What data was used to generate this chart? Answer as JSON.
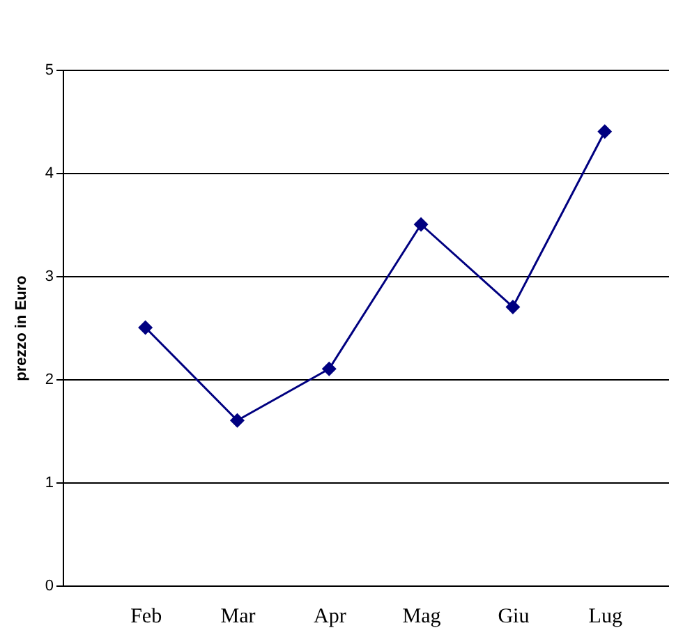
{
  "chart_data": {
    "type": "line",
    "ylabel": "prezzo in Euro",
    "categories": [
      "Feb",
      "Mar",
      "Apr",
      "Mag",
      "Giu",
      "Lug"
    ],
    "series": [
      {
        "color": "#000080",
        "values": [
          2.5,
          1.6,
          2.1,
          3.5,
          2.7,
          4.4
        ]
      }
    ],
    "ylim": [
      0,
      5
    ],
    "yticks": [
      0,
      1,
      2,
      3,
      4,
      5
    ],
    "grid": "y",
    "marker": "diamond",
    "line_style": "solid",
    "legend": false
  }
}
